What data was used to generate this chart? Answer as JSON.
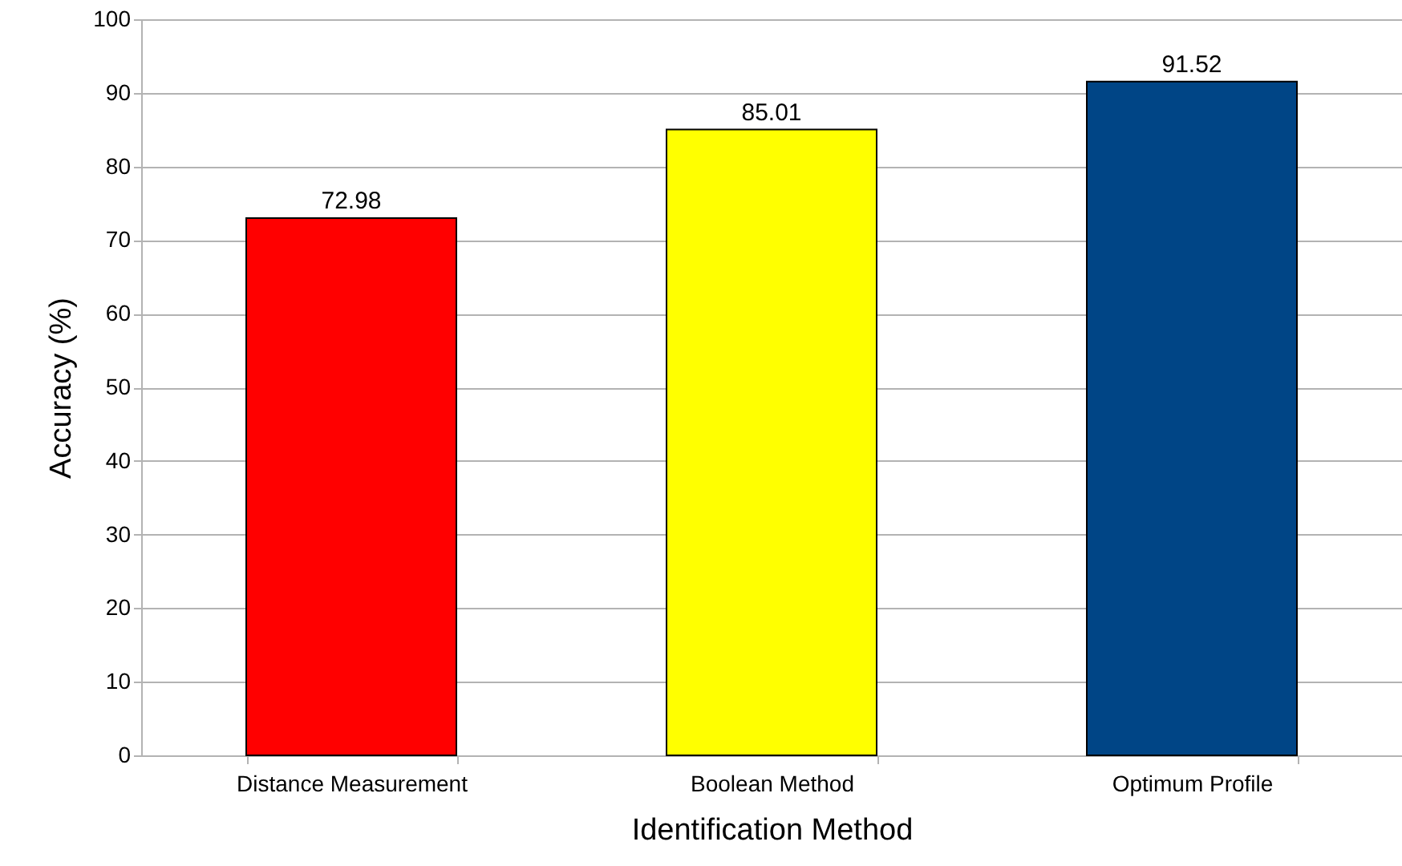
{
  "chart_data": {
    "type": "bar",
    "xlabel": "Identification Method",
    "ylabel": "Accuracy (%)",
    "categories": [
      "Distance Measurement",
      "Boolean Method",
      "Optimum Profile"
    ],
    "values": [
      72.98,
      85.01,
      91.52
    ],
    "colors": [
      "#ff0000",
      "#ffff00",
      "#004586"
    ],
    "ylim": [
      0,
      100
    ],
    "yticks": [
      0,
      10,
      20,
      30,
      40,
      50,
      60,
      70,
      80,
      90,
      100
    ],
    "grid": "y",
    "data_labels": true
  }
}
